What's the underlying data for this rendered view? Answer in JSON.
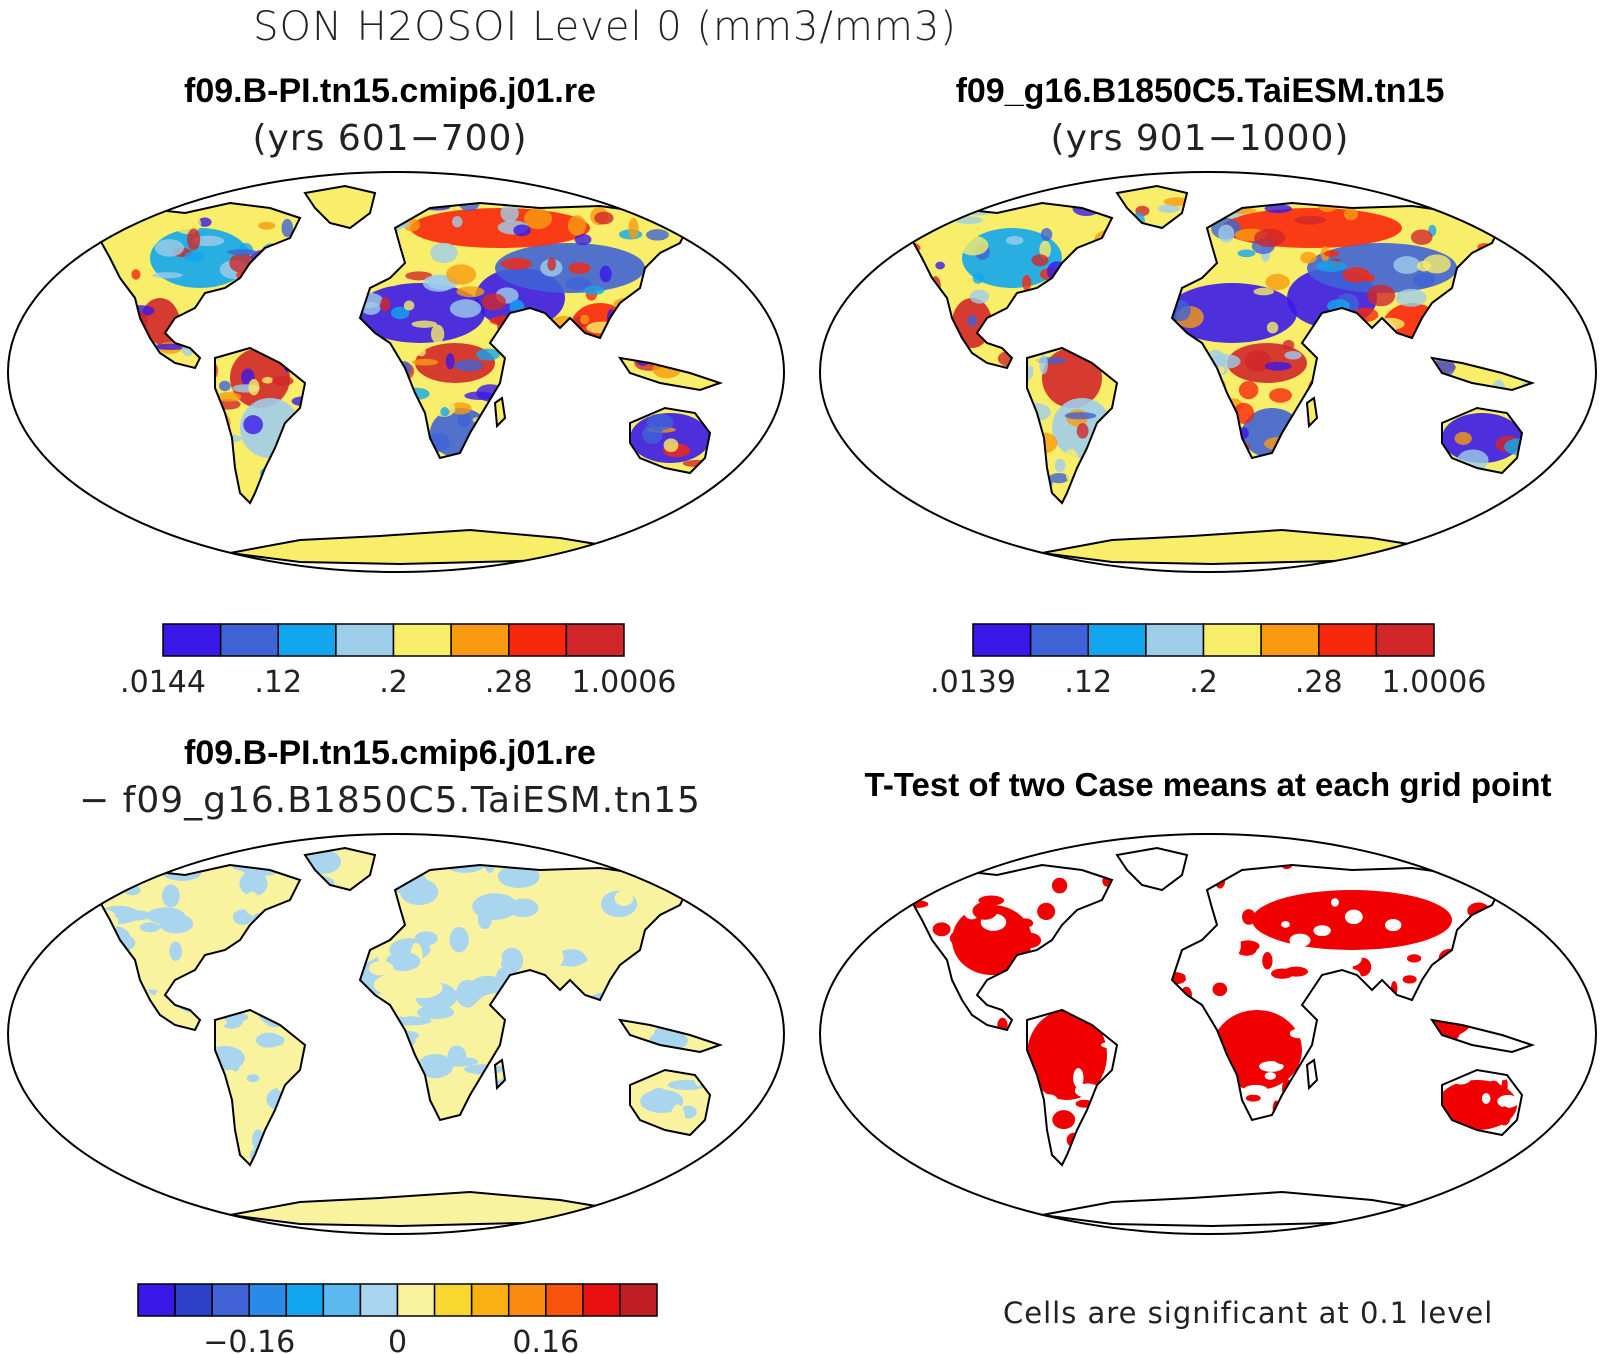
{
  "title": "SON H2OSOI Level 0 (mm3/mm3)",
  "panels": [
    {
      "title": "f09.B-PI.tn15.cmip6.j01.re",
      "subtitle": "(yrs 601−700)",
      "colorbar": {
        "colors": [
          "#3a19e8",
          "#3f63d6",
          "#12a6ef",
          "#9ecdea",
          "#f8ee6a",
          "#f89b10",
          "#f8280c",
          "#d1272a"
        ],
        "labels": [
          ".0144",
          ".12",
          ".2",
          ".28",
          "1.0006"
        ]
      }
    },
    {
      "title": "f09_g16.B1850C5.TaiESM.tn15",
      "subtitle": "(yrs 901−1000)",
      "colorbar": {
        "colors": [
          "#3a19e8",
          "#3f63d6",
          "#12a6ef",
          "#9ecdea",
          "#f8ee6a",
          "#f89b10",
          "#f8280c",
          "#d1272a"
        ],
        "labels": [
          ".0139",
          ".12",
          ".2",
          ".28",
          "1.0006"
        ]
      }
    },
    {
      "title": "f09.B-PI.tn15.cmip6.j01.re",
      "subtitle": "− f09_g16.B1850C5.TaiESM.tn15",
      "colorbar": {
        "colors": [
          "#3a19e8",
          "#2e3fc8",
          "#3f63d6",
          "#2a8ae8",
          "#12a6ef",
          "#5cb9ef",
          "#a9d5ee",
          "#f9f3a0",
          "#f8d72e",
          "#f8b013",
          "#f88a10",
          "#f8520c",
          "#e81010",
          "#c01e22"
        ],
        "labels": [
          "−0.16",
          "0",
          "0.16"
        ]
      }
    },
    {
      "title": "T-Test of two Case means at each grid point",
      "footnote": "Cells are significant at 0.1 level"
    }
  ],
  "colors": {
    "significant": "#f00000",
    "coastline": "#000000",
    "background": "#ffffff"
  }
}
